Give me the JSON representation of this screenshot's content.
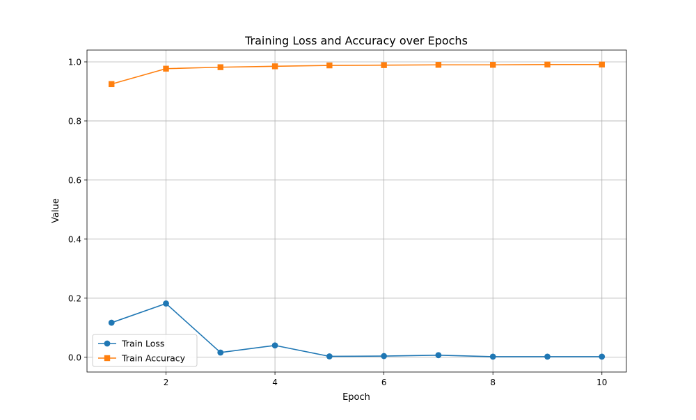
{
  "chart_data": {
    "type": "line",
    "title": "Training Loss and Accuracy over Epochs",
    "xlabel": "Epoch",
    "ylabel": "Value",
    "x": [
      1,
      2,
      3,
      4,
      5,
      6,
      7,
      8,
      9,
      10
    ],
    "xlim": [
      0.55,
      10.45
    ],
    "ylim": [
      -0.05,
      1.04
    ],
    "x_ticks": [
      2,
      4,
      6,
      8,
      10
    ],
    "y_ticks": [
      0.0,
      0.2,
      0.4,
      0.6,
      0.8,
      1.0
    ],
    "x_tick_labels": [
      "2",
      "4",
      "6",
      "8",
      "10"
    ],
    "y_tick_labels": [
      "0.0",
      "0.2",
      "0.4",
      "0.6",
      "0.8",
      "1.0"
    ],
    "grid": true,
    "legend_position": "lower-left",
    "series": [
      {
        "name": "Train Loss",
        "color": "#1f77b4",
        "marker": "circle",
        "values": [
          0.117,
          0.182,
          0.016,
          0.04,
          0.003,
          0.004,
          0.007,
          0.002,
          0.002,
          0.002
        ]
      },
      {
        "name": "Train Accuracy",
        "color": "#ff7f0e",
        "marker": "square",
        "values": [
          0.925,
          0.977,
          0.982,
          0.985,
          0.988,
          0.989,
          0.99,
          0.99,
          0.991,
          0.991
        ]
      }
    ]
  }
}
